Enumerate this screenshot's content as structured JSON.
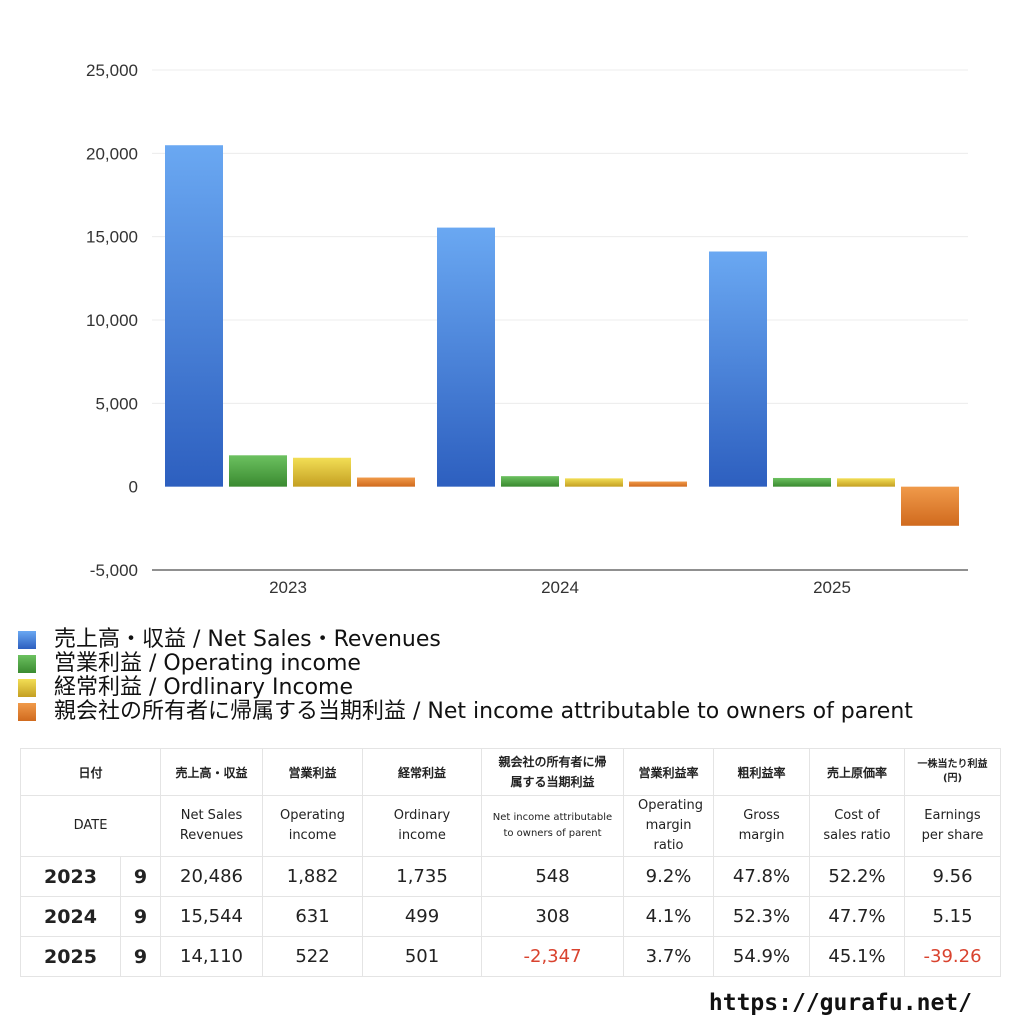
{
  "chart_data": {
    "type": "bar",
    "categories": [
      "2023",
      "2024",
      "2025"
    ],
    "series": [
      {
        "name": "売上高・収益 / Net Sales・Revenues",
        "values": [
          20486,
          15544,
          14110
        ]
      },
      {
        "name": "営業利益 / Operating income",
        "values": [
          1882,
          631,
          522
        ]
      },
      {
        "name": "経常利益 / Ordlinary Income",
        "values": [
          1735,
          499,
          501
        ]
      },
      {
        "name": "親会社の所有者に帰属する当期利益 / Net income attributable to owners of parent",
        "values": [
          548,
          308,
          -2347
        ]
      }
    ],
    "yticks": [
      "25,000",
      "20,000",
      "15,000",
      "10,000",
      "5,000",
      "0",
      "-5,000"
    ],
    "ylim": [
      -5000,
      25000
    ],
    "grid": true,
    "legend": "bottom-left",
    "colors": [
      "#3a78d8",
      "#4a9a3c",
      "#d6b830",
      "#e07a2a"
    ]
  },
  "table": {
    "header_ja": [
      "日付",
      "売上高・収益",
      "営業利益",
      "経常利益",
      "親会社の所有者に帰属する当期利益",
      "営業利益率",
      "粗利益率",
      "売上原価率",
      "一株当たり利益(円)"
    ],
    "header_en": [
      "DATE",
      "Net Sales Revenues",
      "Operating income",
      "Ordinary income",
      "Net income attributable to owners of parent",
      "Operating margin ratio",
      "Gross margin",
      "Cost of sales ratio",
      "Earnings per share"
    ],
    "rows": [
      {
        "year": "2023",
        "month": "9",
        "sales": "20,486",
        "op": "1,882",
        "ord": "1,735",
        "net": "548",
        "opm": "9.2%",
        "gm": "47.8%",
        "cos": "52.2%",
        "eps": "9.56"
      },
      {
        "year": "2024",
        "month": "9",
        "sales": "15,544",
        "op": "631",
        "ord": "499",
        "net": "308",
        "opm": "4.1%",
        "gm": "52.3%",
        "cos": "47.7%",
        "eps": "5.15"
      },
      {
        "year": "2025",
        "month": "9",
        "sales": "14,110",
        "op": "522",
        "ord": "501",
        "net": "-2,347",
        "opm": "3.7%",
        "gm": "54.9%",
        "cos": "45.1%",
        "eps": "-39.26"
      }
    ]
  },
  "site": "https://gurafu.net/"
}
